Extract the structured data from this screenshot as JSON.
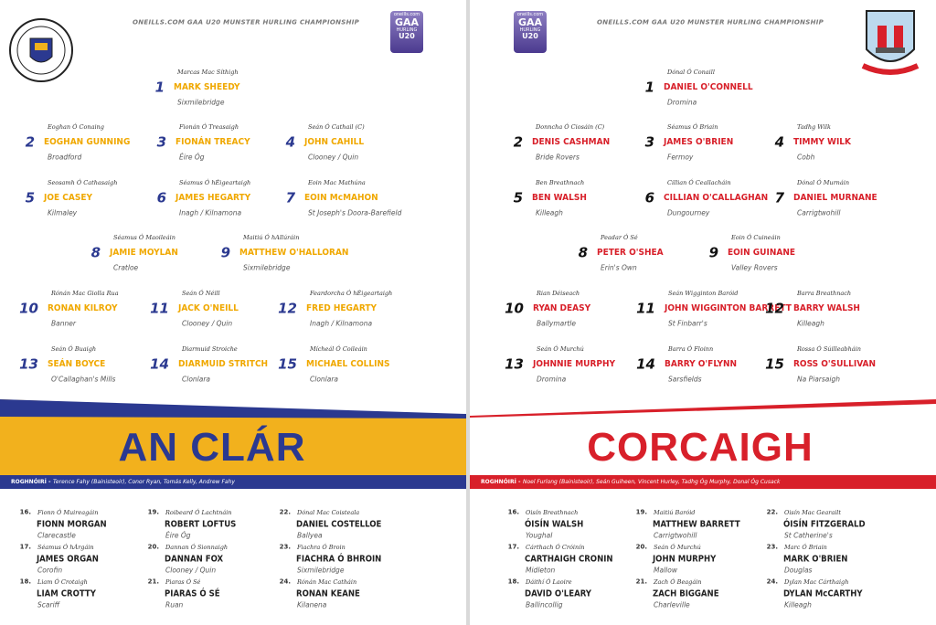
{
  "pages": [
    {
      "header": "ONEILLS.COM GAA U20 MUNSTER HURLING CHAMPIONSHIP",
      "logo": {
        "brand": "oneills.com",
        "gaa": "GAA",
        "sport": "HURLING",
        "grade": "U20"
      },
      "team": "AN CLÁR",
      "selectors": {
        "label": "ROGHNÓIRÍ -",
        "text": "Terence Fahy (Bainisteoir), Conor Ryan, Tomás Kelly, Andrew Fahy"
      },
      "players": [
        {
          "number": 1,
          "irish": "Marcas Mac Síthigh",
          "name": "MARK SHEEDY",
          "club": "Sixmilebridge"
        },
        {
          "number": 2,
          "irish": "Eoghan Ó Conaing",
          "name": "EOGHAN GUNNING",
          "club": "Broadford"
        },
        {
          "number": 3,
          "irish": "Fionán Ó Treasaigh",
          "name": "FIONÁN TREACY",
          "club": "Éire Óg"
        },
        {
          "number": 4,
          "irish": "Seán Ó Cathail (C)",
          "name": "JOHN CAHILL",
          "club": "Clooney / Quin"
        },
        {
          "number": 5,
          "irish": "Seosamh Ó Cathasaigh",
          "name": "JOE CASEY",
          "club": "Kilmaley"
        },
        {
          "number": 6,
          "irish": "Séamus Ó hÉigeartaigh",
          "name": "JAMES HEGARTY",
          "club": "Inagh / Kilnamona"
        },
        {
          "number": 7,
          "irish": "Eoin Mac Mathúna",
          "name": "EOIN McMAHON",
          "club": "St Joseph's Doora-Barefield"
        },
        {
          "number": 8,
          "irish": "Séamus Ó Maoileáin",
          "name": "JAMIE MOYLAN",
          "club": "Cratloe"
        },
        {
          "number": 9,
          "irish": "Maitiú Ó hAllúráin",
          "name": "MATTHEW O'HALLORAN",
          "club": "Sixmilebridge"
        },
        {
          "number": 10,
          "irish": "Rónán Mac Giolla Rua",
          "name": "RONAN KILROY",
          "club": "Banner"
        },
        {
          "number": 11,
          "irish": "Seán Ó Néill",
          "name": "JACK O'NEILL",
          "club": "Clooney / Quin"
        },
        {
          "number": 12,
          "irish": "Feardorcha Ó hÉigeartaigh",
          "name": "FRED HEGARTY",
          "club": "Inagh / Kilnamona"
        },
        {
          "number": 13,
          "irish": "Seán Ó Buaigh",
          "name": "SEÁN BOYCE",
          "club": "O'Callaghan's Mills"
        },
        {
          "number": 14,
          "irish": "Diarmuid Stroiche",
          "name": "DIARMUID STRITCH",
          "club": "Clonlara"
        },
        {
          "number": 15,
          "irish": "Mícheál Ó Coileáin",
          "name": "MICHAEL COLLINS",
          "club": "Clonlara"
        }
      ],
      "subs": [
        {
          "number": "16.",
          "irish": "Fionn Ó Muireagáin",
          "name": "FIONN MORGAN",
          "club": "Clarecastle"
        },
        {
          "number": "17.",
          "irish": "Séamus Ó hÁrgáin",
          "name": "JAMES ORGAN",
          "club": "Corofin"
        },
        {
          "number": "18.",
          "irish": "Liam Ó Crotaigh",
          "name": "LIAM CROTTY",
          "club": "Scariff"
        },
        {
          "number": "19.",
          "irish": "Roibeard Ó Lachtnáin",
          "name": "ROBERT LOFTUS",
          "club": "Éire Óg"
        },
        {
          "number": "20.",
          "irish": "Dannan Ó Sionnaigh",
          "name": "DANNAN FOX",
          "club": "Clooney / Quin"
        },
        {
          "number": "21.",
          "irish": "Piaras Ó Sé",
          "name": "PIARAS Ó SÉ",
          "club": "Ruan"
        },
        {
          "number": "22.",
          "irish": "Dónal Mac Coisteala",
          "name": "DANIEL COSTELLOE",
          "club": "Ballyea"
        },
        {
          "number": "23.",
          "irish": "Fiachra Ó Broin",
          "name": "FIACHRA Ó BHROIN",
          "club": "Sixmilebridge"
        },
        {
          "number": "24.",
          "irish": "Rónán Mac Catháin",
          "name": "RONAN KEANE",
          "club": "Kilanena"
        }
      ]
    },
    {
      "header": "ONEILLS.COM GAA U20 MUNSTER HURLING CHAMPIONSHIP",
      "logo": {
        "brand": "oneills.com",
        "gaa": "GAA",
        "sport": "HURLING",
        "grade": "U20"
      },
      "team": "CORCAIGH",
      "selectors": {
        "label": "ROGHNÓIRÍ -",
        "text": "Noel Furlong (Bainisteoir), Seán Guiheen, Vincent Hurley, Tadhg Óg Murphy, Donal Óg Cusack"
      },
      "players": [
        {
          "number": 1,
          "irish": "Dónal Ó Conaill",
          "name": "DANIEL O'CONNELL",
          "club": "Dromina"
        },
        {
          "number": 2,
          "irish": "Donncha Ó Ciosáin (C)",
          "name": "DENIS CASHMAN",
          "club": "Bride Rovers"
        },
        {
          "number": 3,
          "irish": "Séamus Ó Briain",
          "name": "JAMES O'BRIEN",
          "club": "Fermoy"
        },
        {
          "number": 4,
          "irish": "Tadhg Wilk",
          "name": "TIMMY WILK",
          "club": "Cobh"
        },
        {
          "number": 5,
          "irish": "Ben Breathnach",
          "name": "BEN WALSH",
          "club": "Killeagh"
        },
        {
          "number": 6,
          "irish": "Cillian Ó Ceallacháin",
          "name": "CILLIAN O'CALLAGHAN",
          "club": "Dungourney"
        },
        {
          "number": 7,
          "irish": "Dónal Ó Murnáin",
          "name": "DANIEL MURNANE",
          "club": "Carrigtwohill"
        },
        {
          "number": 8,
          "irish": "Peadar Ó Sé",
          "name": "PETER O'SHEA",
          "club": "Erin's Own"
        },
        {
          "number": 9,
          "irish": "Eoin Ó Cuineáin",
          "name": "EOIN GUINANE",
          "club": "Valley Rovers"
        },
        {
          "number": 10,
          "irish": "Rian Déiseach",
          "name": "RYAN DEASY",
          "club": "Ballymartle"
        },
        {
          "number": 11,
          "irish": "Seán Wigginton Baróid",
          "name": "JOHN WIGGINTON BARRETT",
          "club": "St Finbarr's"
        },
        {
          "number": 12,
          "irish": "Barra Breathnach",
          "name": "BARRY WALSH",
          "club": "Killeagh"
        },
        {
          "number": 13,
          "irish": "Seán Ó Murchú",
          "name": "JOHNNIE MURPHY",
          "club": "Dromina"
        },
        {
          "number": 14,
          "irish": "Barra Ó Floinn",
          "name": "BARRY O'FLYNN",
          "club": "Sarsfields"
        },
        {
          "number": 15,
          "irish": "Rossa Ó Súilleabháin",
          "name": "ROSS O'SULLIVAN",
          "club": "Na Piarsaigh"
        }
      ],
      "subs": [
        {
          "number": "16.",
          "irish": "Oisín Breathnach",
          "name": "ÓISÍN WALSH",
          "club": "Youghal"
        },
        {
          "number": "17.",
          "irish": "Cárthach Ó Cróinín",
          "name": "CARTHAIGH CRONIN",
          "club": "Midleton"
        },
        {
          "number": "18.",
          "irish": "Dáithí Ó Laoire",
          "name": "DAVID O'LEARY",
          "club": "Ballincollig"
        },
        {
          "number": "19.",
          "irish": "Maitiú Baróid",
          "name": "MATTHEW BARRETT",
          "club": "Carrigtwohill"
        },
        {
          "number": "20.",
          "irish": "Seán Ó Murchú",
          "name": "JOHN MURPHY",
          "club": "Mallow"
        },
        {
          "number": "21.",
          "irish": "Zach Ó Beagáin",
          "name": "ZACH BIGGANE",
          "club": "Charleville"
        },
        {
          "number": "22.",
          "irish": "Oisín Mac Gearailt",
          "name": "ÓISÍN FITZGERALD",
          "club": "St Catherine's"
        },
        {
          "number": "23.",
          "irish": "Marc Ó Briain",
          "name": "MARK O'BRIEN",
          "club": "Douglas"
        },
        {
          "number": "24.",
          "irish": "Dylan Mac Cárthaigh",
          "name": "DYLAN McCARTHY",
          "club": "Killeagh"
        }
      ]
    }
  ]
}
